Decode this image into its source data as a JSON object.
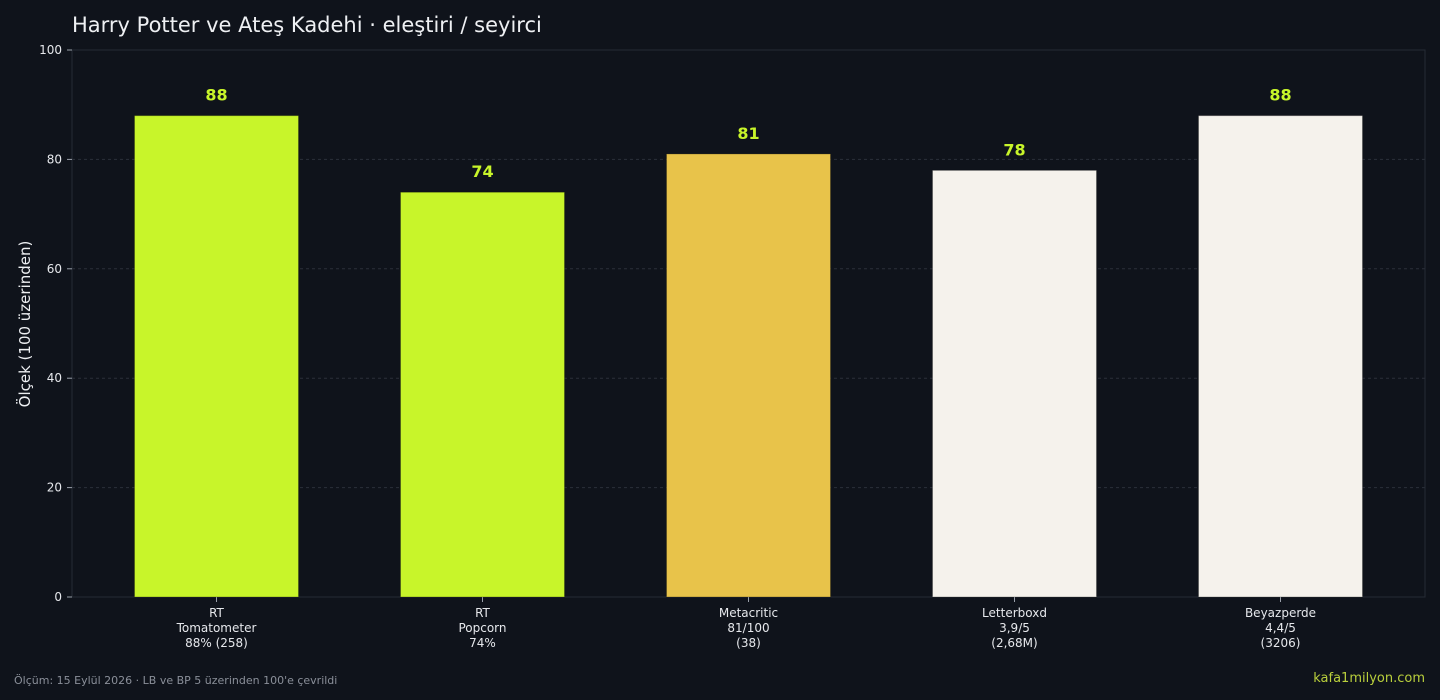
{
  "chart_data": {
    "type": "bar",
    "title": "Harry Potter ve Ateş Kadehi · eleştiri / seyirci",
    "ylabel": "Ölçek (100 üzerinden)",
    "xlabel": "",
    "ylim": [
      0,
      100
    ],
    "yticks": [
      0,
      20,
      40,
      60,
      80,
      100
    ],
    "grid": true,
    "categories": [
      [
        "RT",
        "Tomatometer",
        "88% (258)"
      ],
      [
        "RT",
        "Popcorn",
        "74%"
      ],
      [
        "Metacritic",
        "81/100",
        "(38)"
      ],
      [
        "Letterboxd",
        "3,9/5",
        "(2,68M)"
      ],
      [
        "Beyazperde",
        "4,4/5",
        "(3206)"
      ]
    ],
    "values": [
      88,
      74,
      81,
      78,
      88
    ],
    "value_labels": [
      "88",
      "74",
      "81",
      "78",
      "88"
    ],
    "colors": [
      "#c8f52a",
      "#c8f52a",
      "#e8c34a",
      "#f5f2ec",
      "#f5f2ec"
    ],
    "value_label_color": "#c8f52a"
  },
  "footer": {
    "note": "Ölçüm: 15 Eylül 2026 · LB ve BP 5 üzerinden 100'e çevrildi",
    "brand": "kafa1milyon.com"
  }
}
